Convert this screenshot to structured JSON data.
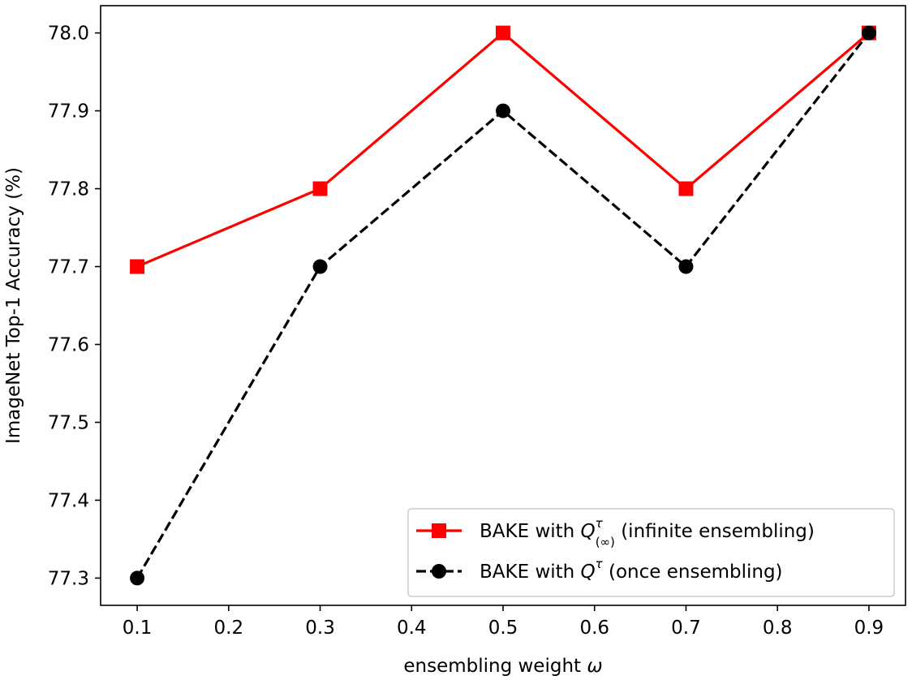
{
  "chart_data": {
    "type": "line",
    "title": "",
    "xlabel": "ensembling weight",
    "xlabel_symbol": "ω",
    "ylabel": "ImageNet Top-1 Accuracy (%)",
    "x": [
      0.1,
      0.3,
      0.5,
      0.7,
      0.9
    ],
    "xlim": [
      0.06,
      0.94
    ],
    "ylim": [
      77.265,
      78.035
    ],
    "xticks": [
      0.1,
      0.2,
      0.3,
      0.4,
      0.5,
      0.6,
      0.7,
      0.8,
      0.9
    ],
    "xtick_labels": [
      "0.1",
      "0.2",
      "0.3",
      "0.4",
      "0.5",
      "0.6",
      "0.7",
      "0.8",
      "0.9"
    ],
    "yticks": [
      77.3,
      77.4,
      77.5,
      77.6,
      77.7,
      77.8,
      77.9,
      78.0
    ],
    "ytick_labels": [
      "77.3",
      "77.4",
      "77.5",
      "77.6",
      "77.7",
      "77.8",
      "77.9",
      "78.0"
    ],
    "grid": false,
    "legend_position": "bottom-right",
    "series": [
      {
        "name": "BAKE with Q^τ_(∞) (infinite ensembling)",
        "legend_prefix": "BAKE with",
        "legend_symbol": "Q",
        "legend_sup": "τ",
        "legend_sub": "(∞)",
        "legend_suffix": "(infinite ensembling)",
        "values": [
          77.7,
          77.8,
          78.0,
          77.8,
          78.0
        ],
        "color": "#ff0000",
        "marker": "square",
        "linestyle": "solid"
      },
      {
        "name": "BAKE with Q^τ (once ensembling)",
        "legend_prefix": "BAKE with",
        "legend_symbol": "Q",
        "legend_sup": "τ",
        "legend_sub": "",
        "legend_suffix": "(once ensembling)",
        "values": [
          77.3,
          77.7,
          77.9,
          77.7,
          78.0
        ],
        "color": "#000000",
        "marker": "circle",
        "linestyle": "dashed"
      }
    ]
  }
}
